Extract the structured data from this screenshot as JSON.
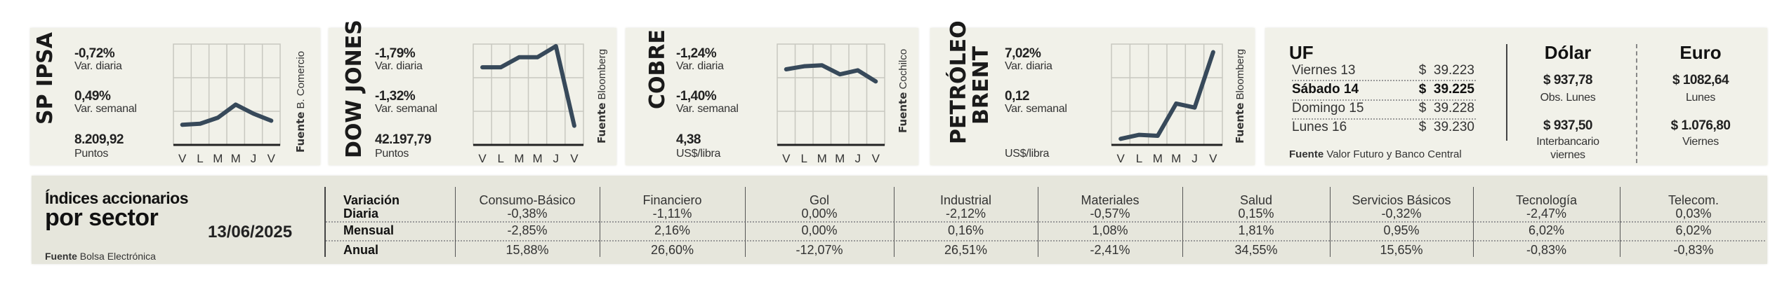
{
  "colors": {
    "line": "#37495a",
    "panel": "#f1f1e9",
    "table": "#e6e6dc"
  },
  "indicators": [
    {
      "title": "SP IPSA",
      "title2": "",
      "daily": "-0,72%",
      "daily_label": "Var. diaria",
      "weekly": "0,49%",
      "weekly_label": "Var. semanal",
      "value": "8.209,92",
      "unit": "Puntos",
      "source_bold": "Fuente",
      "source": "B. Comercio"
    },
    {
      "title": "DOW JONES",
      "title2": "",
      "daily": "-1,79%",
      "daily_label": "Var. diaria",
      "weekly": "-1,32%",
      "weekly_label": "Var. semanal",
      "value": "42.197,79",
      "unit": "Puntos",
      "source_bold": "Fuente",
      "source": "Bloomberg"
    },
    {
      "title": "COBRE",
      "title2": "",
      "daily": "-1,24%",
      "daily_label": "Var. diaria",
      "weekly": "-1,40%",
      "weekly_label": "Var. semanal",
      "value": "4,38",
      "unit": "US$/libra",
      "source_bold": "Fuente",
      "source": "Cochilco"
    },
    {
      "title": "PETRÓLEO",
      "title2": "BRENT",
      "daily": "7,02%",
      "daily_label": "Var. diaria",
      "weekly": "0,12",
      "weekly_label": "Var. semanal",
      "value": "",
      "unit": "US$/libra",
      "source_bold": "Fuente",
      "source": "Bloomberg"
    }
  ],
  "chart_data": [
    {
      "type": "line",
      "title": "SP IPSA",
      "categories": [
        "V",
        "L",
        "M",
        "M",
        "J",
        "V"
      ],
      "values": [
        20,
        21,
        27,
        40,
        31,
        24
      ],
      "ylim": [
        0,
        100
      ],
      "grid": true
    },
    {
      "type": "line",
      "title": "DOW JONES",
      "categories": [
        "V",
        "L",
        "M",
        "M",
        "J",
        "V"
      ],
      "values": [
        77,
        77,
        87,
        87,
        98,
        19
      ],
      "ylim": [
        0,
        100
      ],
      "grid": true
    },
    {
      "type": "line",
      "title": "COBRE",
      "categories": [
        "V",
        "L",
        "M",
        "M",
        "J",
        "V"
      ],
      "values": [
        75,
        78,
        79,
        70,
        74,
        63
      ],
      "ylim": [
        0,
        100
      ],
      "grid": true
    },
    {
      "type": "line",
      "title": "PETRÓLEO BRENT",
      "categories": [
        "V",
        "L",
        "M",
        "M",
        "J",
        "V"
      ],
      "values": [
        6,
        10,
        9,
        41,
        37,
        92
      ],
      "ylim": [
        0,
        100
      ],
      "grid": true
    }
  ],
  "uf": {
    "title": "UF",
    "rows": [
      {
        "day": "Viernes 13",
        "cur": "$",
        "value": "39.223"
      },
      {
        "day": "Sábado 14",
        "cur": "$",
        "value": "39.225"
      },
      {
        "day": "Domingo 15",
        "cur": "$",
        "value": "39.228"
      },
      {
        "day": "Lunes 16",
        "cur": "$",
        "value": "39.230"
      }
    ],
    "source_bold": "Fuente",
    "source": "Valor Futuro y Banco Central"
  },
  "dolar": {
    "title": "Dólar",
    "v1": "$ 937,78",
    "l1": "Obs. Lunes",
    "v2": "$ 937,50",
    "l2a": "Interbancario",
    "l2b": "viernes"
  },
  "euro": {
    "title": "Euro",
    "v1": "$ 1082,64",
    "l1": "Lunes",
    "v2": "$ 1.076,80",
    "l2": "Viernes"
  },
  "sector": {
    "title1": "Índices accionarios",
    "title2": "por sector",
    "date": "13/06/2025",
    "source_bold": "Fuente",
    "source": "Bolsa Electrónica",
    "row_header": "Variación",
    "row_labels": [
      "Diaria",
      "Mensual",
      "Anual"
    ],
    "columns": [
      {
        "name": "Consumo-Básico",
        "values": [
          "-0,38%",
          "-2,85%",
          "15,88%"
        ]
      },
      {
        "name": "Financiero",
        "values": [
          "-1,11%",
          "2,16%",
          "26,60%"
        ]
      },
      {
        "name": "Gol",
        "values": [
          "0,00%",
          "0,00%",
          "-12,07%"
        ]
      },
      {
        "name": "Industrial",
        "values": [
          "-2,12%",
          "0,16%",
          "26,51%"
        ]
      },
      {
        "name": "Materiales",
        "values": [
          "-0,57%",
          "1,08%",
          "-2,41%"
        ]
      },
      {
        "name": "Salud",
        "values": [
          "0,15%",
          "1,81%",
          "34,55%"
        ]
      },
      {
        "name": "Servicios Básicos",
        "values": [
          "-0,32%",
          "0,95%",
          "15,65%"
        ]
      },
      {
        "name": "Tecnología",
        "values": [
          "-2,47%",
          "6,02%",
          "-0,83%"
        ]
      },
      {
        "name": "Telecom.",
        "values": [
          "0,03%",
          "6,02%",
          "-0,83%"
        ]
      }
    ]
  }
}
